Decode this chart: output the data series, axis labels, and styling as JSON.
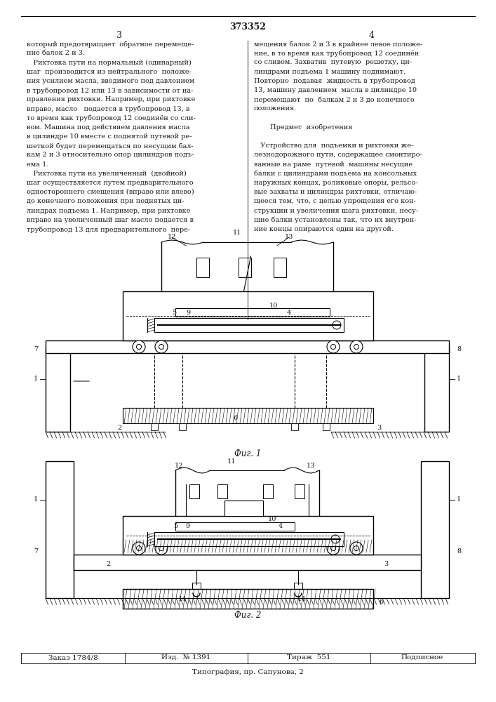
{
  "patent_number": "373352",
  "page_left": "3",
  "page_right": "4",
  "text_col1_lines": [
    "который предотвращает  обратное перемеще-",
    "ние балок 2 и 3.",
    "   Рихтовка пути на нормальный (одинарный)",
    "шаг  производится из нейтрального  положе-",
    "ния усилием масла, вводимого под давлением",
    "в трубопровод 12 или 13 в зависимости от на-",
    "правления рихтовки. Например, при рихтовке",
    "вправо, масло   подается в трубопровод 13, в",
    "то время как трубопровод 12 соединён со сли-",
    "вом. Машина под действием давления масла",
    "в цилиндре 10 вместе с поднятой путевой ре-",
    "шеткой будет перемещаться по несущим бал-",
    "кам 2 и 3 относительно опор цилиндров подъ-",
    "ема 1.",
    "   Рихтовка пути на увеличенный  (двойной)",
    "шаг осуществляется путем предварительного",
    "одностороннего смещения (вправо или влево)",
    "до конечного положения при поднятых ци-",
    "линдрах подъема 1. Например, при рихтовке",
    "вправо на увеличенный шаг масло подается в",
    "трубопровод 13 для предварительного  пере-"
  ],
  "text_col2_lines": [
    "мещения балок 2 и 3 в крайнее левое положе-",
    "ние, в то время как трубопровод 12 соединён",
    "со сливом. Захватив  путевую  решетку, ци-",
    "линдрами подъема 1 машину поднимают.",
    "Повторно  подавая  жидкость в трубопровод",
    "13, машину давлением  масла в цилиндре 10",
    "перемещают  по  балкам 2 и 3 до конечного",
    "положения.",
    "",
    "         Предмет  изобретения",
    "",
    "   Устройство для  подъемки и рихтовки же-",
    "лезнодорожного пути, содержащее смонтиро-",
    "ванные на раме  путевой  машины несущие",
    "балки с цилиндрами подъема на консольных",
    "наружных концах, роликовые опоры, рельсо-",
    "вые захваты и цилиндры рихтовки, отличаю-",
    "щееся тем, что, с целью упрощения его кон-",
    "струкции и увеличения шага рихтовки, несу-",
    "щие балки установлены так, что их внутрен-",
    "ние концы опираются один на другой."
  ],
  "col2_italic_word": "отличаю-",
  "col2_italic_word2": "щееся",
  "fig1_caption": "Фиг. 1",
  "fig2_caption": "Фиг. 2",
  "footer_left": "Заказ 1784/8",
  "footer_center_left": "Изд.  № 1391",
  "footer_center_right": "Тираж  551",
  "footer_right": "Подписное",
  "footer_bottom": "Типография, пр. Сапунова, 2",
  "bg_color": "#ffffff",
  "text_color": "#1a1a1a",
  "line_color": "#000000"
}
